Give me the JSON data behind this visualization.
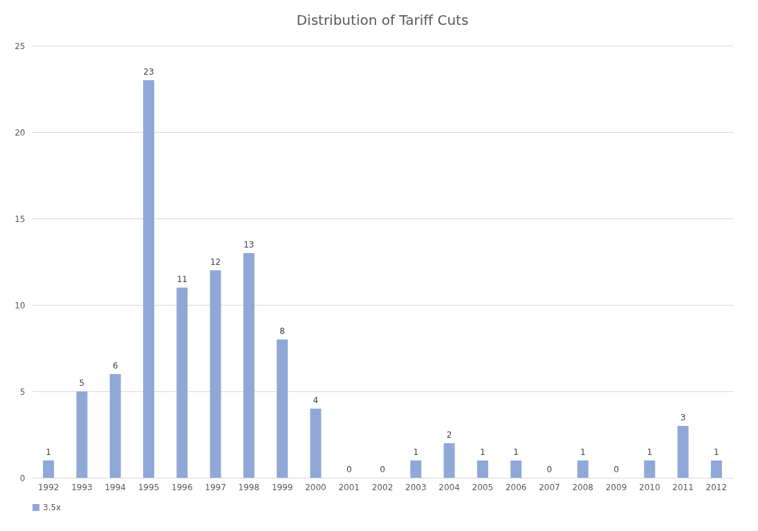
{
  "chart_data": {
    "type": "bar",
    "title": "Distribution of Tariff Cuts",
    "categories": [
      "1992",
      "1993",
      "1994",
      "1995",
      "1996",
      "1997",
      "1998",
      "1999",
      "2000",
      "2001",
      "2002",
      "2003",
      "2004",
      "2005",
      "2006",
      "2007",
      "2008",
      "2009",
      "2010",
      "2011",
      "2012"
    ],
    "series": [
      {
        "name": "3.5x",
        "color": "#8fa8d8",
        "values": [
          1,
          5,
          6,
          23,
          11,
          12,
          13,
          8,
          4,
          0,
          0,
          1,
          2,
          1,
          1,
          0,
          1,
          0,
          1,
          3,
          1
        ]
      }
    ],
    "ylim": [
      0,
      25
    ],
    "yticks": [
      0,
      5,
      10,
      15,
      20,
      25
    ],
    "grid": "y",
    "legend": "bottom",
    "data_labels": true
  }
}
